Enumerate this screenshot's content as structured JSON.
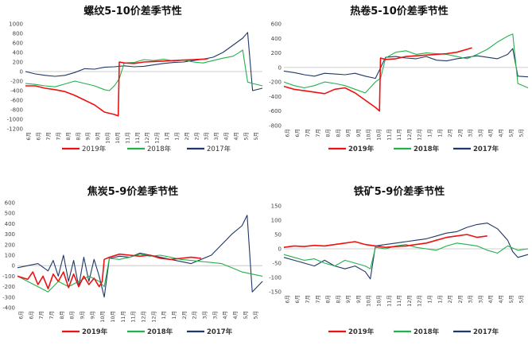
{
  "colors": {
    "2019": "#ee1111",
    "2018": "#22b14c",
    "2017": "#1f3864"
  },
  "months": [
    "6月",
    "6月",
    "7月",
    "7月",
    "8月",
    "8月",
    "9月",
    "9月",
    "10月",
    "10月",
    "11月",
    "11月",
    "12月",
    "12月",
    "1月",
    "1月",
    "2月",
    "2月",
    "3月",
    "3月",
    "4月",
    "4月",
    "5月",
    "5月"
  ],
  "chart_data": [
    {
      "type": "line",
      "title": "螺纹5-10价差季节性",
      "ylim": [
        -1200,
        1000
      ],
      "yticks": [
        1000,
        800,
        600,
        400,
        200,
        0,
        -200,
        -400,
        -600,
        -800,
        -1000,
        -1200
      ],
      "legend_bold": false,
      "break_index": 9.5,
      "series": [
        {
          "name": "2019年",
          "color_key": "2019",
          "x": [
            0,
            1,
            2,
            3,
            4,
            5,
            6,
            7,
            8,
            9,
            9.4,
            9.5,
            10,
            11,
            12,
            13,
            14,
            15,
            16,
            17,
            18,
            18.5
          ],
          "values": [
            -300,
            -300,
            -350,
            -380,
            -420,
            -500,
            -600,
            -700,
            -850,
            -900,
            -930,
            200,
            180,
            170,
            200,
            210,
            220,
            230,
            240,
            250,
            260,
            270
          ]
        },
        {
          "name": "2018年",
          "color_key": "2018",
          "x": [
            0,
            1,
            2,
            3,
            4,
            5,
            6,
            7,
            8,
            8.5,
            9,
            9.5,
            10,
            11,
            12,
            13,
            14,
            15,
            16,
            17,
            18,
            19,
            20,
            21,
            21.5,
            22,
            22.5,
            23,
            24
          ],
          "values": [
            -250,
            -270,
            -300,
            -320,
            -260,
            -200,
            -250,
            -300,
            -380,
            -400,
            -300,
            -150,
            180,
            190,
            250,
            230,
            260,
            220,
            240,
            200,
            180,
            230,
            280,
            320,
            380,
            450,
            -220,
            -250,
            -300
          ]
        },
        {
          "name": "2017年",
          "color_key": "2017",
          "x": [
            0,
            1,
            2,
            3,
            4,
            5,
            6,
            7,
            8,
            9,
            10,
            11,
            12,
            13,
            14,
            15,
            16,
            17,
            18,
            19,
            20,
            21,
            22,
            22.5,
            23,
            24
          ],
          "values": [
            0,
            -50,
            -80,
            -100,
            -80,
            -20,
            60,
            50,
            90,
            100,
            120,
            100,
            110,
            140,
            170,
            190,
            200,
            230,
            260,
            300,
            400,
            550,
            700,
            820,
            -400,
            -350
          ]
        }
      ]
    },
    {
      "type": "line",
      "title": "热卷5-10价差季节性",
      "ylim": [
        -800,
        600
      ],
      "yticks": [
        600,
        400,
        200,
        0,
        -200,
        -400,
        -600,
        -800
      ],
      "legend_bold": true,
      "break_index": 9.5,
      "series": [
        {
          "name": "2019年",
          "color_key": "2019",
          "x": [
            0,
            1,
            2,
            3,
            4,
            5,
            6,
            7,
            8,
            9,
            9.4,
            9.5,
            10,
            11,
            12,
            13,
            14,
            15,
            16,
            17,
            18,
            18.5
          ],
          "values": [
            -260,
            -300,
            -320,
            -340,
            -360,
            -300,
            -280,
            -350,
            -450,
            -550,
            -600,
            130,
            110,
            120,
            150,
            160,
            170,
            180,
            190,
            210,
            250,
            270
          ]
        },
        {
          "name": "2018年",
          "color_key": "2018",
          "x": [
            0,
            1,
            2,
            3,
            4,
            5,
            6,
            7,
            8,
            9,
            9.5,
            10,
            11,
            12,
            13,
            14,
            15,
            16,
            17,
            18,
            19,
            20,
            21,
            22,
            22.5,
            23,
            24
          ],
          "values": [
            -200,
            -250,
            -280,
            -250,
            -200,
            -220,
            -250,
            -300,
            -350,
            -200,
            -150,
            130,
            210,
            230,
            180,
            200,
            190,
            180,
            150,
            120,
            180,
            250,
            350,
            430,
            460,
            -220,
            -280
          ]
        },
        {
          "name": "2017年",
          "color_key": "2017",
          "x": [
            0,
            1,
            2,
            3,
            4,
            5,
            6,
            7,
            8,
            9,
            10,
            11,
            12,
            13,
            14,
            15,
            16,
            17,
            18,
            19,
            20,
            21,
            22,
            22.5,
            23,
            24
          ],
          "values": [
            -50,
            -70,
            -100,
            -120,
            -80,
            -90,
            -100,
            -80,
            -120,
            -150,
            140,
            150,
            130,
            120,
            150,
            100,
            90,
            120,
            140,
            160,
            140,
            120,
            180,
            260,
            -120,
            -130
          ]
        }
      ]
    },
    {
      "type": "line",
      "title": "焦炭5-9价差季节性",
      "ylim": [
        -400,
        600
      ],
      "yticks": [
        600,
        500,
        400,
        300,
        200,
        100,
        0,
        -100,
        -200,
        -300,
        -400
      ],
      "legend_bold": true,
      "break_index": 8.5,
      "series": [
        {
          "name": "2019年",
          "color_key": "2019",
          "x": [
            0,
            1,
            1.5,
            2,
            2.5,
            3,
            3.5,
            4,
            4.5,
            5,
            5.5,
            6,
            6.5,
            7,
            7.5,
            8,
            8.3,
            8.5,
            9,
            10,
            11,
            12,
            13,
            14,
            15,
            16,
            17,
            18
          ],
          "values": [
            -100,
            -130,
            -60,
            -180,
            -100,
            -220,
            -80,
            -150,
            -60,
            -210,
            -80,
            -200,
            -100,
            -180,
            -120,
            -200,
            -150,
            60,
            80,
            110,
            100,
            90,
            100,
            70,
            60,
            70,
            80,
            70
          ]
        },
        {
          "name": "2018年",
          "color_key": "2018",
          "x": [
            0,
            1,
            2,
            3,
            4,
            5,
            6,
            7,
            8,
            8.5,
            9,
            10,
            11,
            12,
            13,
            14,
            15,
            16,
            17,
            18,
            19,
            20,
            21,
            22,
            23,
            24
          ],
          "values": [
            -100,
            -150,
            -200,
            -250,
            -150,
            -200,
            -150,
            -100,
            -150,
            -200,
            70,
            60,
            80,
            110,
            90,
            100,
            80,
            60,
            50,
            40,
            30,
            20,
            -20,
            -60,
            -80,
            -100
          ]
        },
        {
          "name": "2017年",
          "color_key": "2017",
          "x": [
            0,
            1,
            2,
            3,
            3.5,
            4,
            4.5,
            5,
            5.5,
            6,
            6.5,
            7,
            7.5,
            8,
            8.5,
            9,
            10,
            11,
            12,
            13,
            14,
            15,
            16,
            17,
            18,
            19,
            20,
            21,
            22,
            22.5,
            23,
            24
          ],
          "values": [
            -20,
            0,
            20,
            -50,
            50,
            -100,
            100,
            -150,
            50,
            -200,
            80,
            -150,
            60,
            -100,
            -300,
            70,
            90,
            80,
            120,
            100,
            80,
            60,
            40,
            20,
            60,
            100,
            200,
            300,
            380,
            480,
            -250,
            -150
          ]
        }
      ]
    },
    {
      "type": "line",
      "title": "铁矿5-9价差季节性",
      "ylim": [
        -150,
        150
      ],
      "yticks": [
        150,
        100,
        50,
        0,
        -50,
        -100,
        -150
      ],
      "legend_bold": true,
      "break_index": 8.5,
      "series": [
        {
          "name": "2019年",
          "color_key": "2019",
          "x": [
            0,
            1,
            2,
            3,
            4,
            5,
            6,
            7,
            8,
            9,
            10,
            11,
            12,
            13,
            14,
            15,
            16,
            17,
            18,
            19,
            20
          ],
          "values": [
            5,
            10,
            8,
            12,
            10,
            15,
            20,
            25,
            15,
            10,
            5,
            8,
            10,
            15,
            20,
            30,
            40,
            45,
            50,
            40,
            45
          ]
        },
        {
          "name": "2018年",
          "color_key": "2018",
          "x": [
            0,
            1,
            2,
            3,
            4,
            5,
            6,
            7,
            8,
            8.5,
            9,
            10,
            11,
            12,
            13,
            14,
            15,
            16,
            17,
            18,
            19,
            20,
            21,
            22,
            23,
            24
          ],
          "values": [
            -20,
            -30,
            -40,
            -35,
            -50,
            -60,
            -40,
            -50,
            -60,
            -70,
            5,
            0,
            10,
            15,
            5,
            0,
            -5,
            10,
            20,
            15,
            10,
            -5,
            -15,
            10,
            -5,
            0
          ]
        },
        {
          "name": "2017年",
          "color_key": "2017",
          "x": [
            0,
            1,
            2,
            3,
            4,
            5,
            6,
            7,
            8,
            8.5,
            9,
            10,
            11,
            12,
            13,
            14,
            15,
            16,
            17,
            18,
            19,
            20,
            21,
            22,
            22.5,
            23,
            24
          ],
          "values": [
            -30,
            -40,
            -50,
            -60,
            -40,
            -60,
            -70,
            -60,
            -80,
            -105,
            10,
            15,
            20,
            25,
            30,
            35,
            45,
            55,
            60,
            75,
            85,
            90,
            70,
            30,
            -10,
            -30,
            -20
          ]
        }
      ]
    }
  ]
}
